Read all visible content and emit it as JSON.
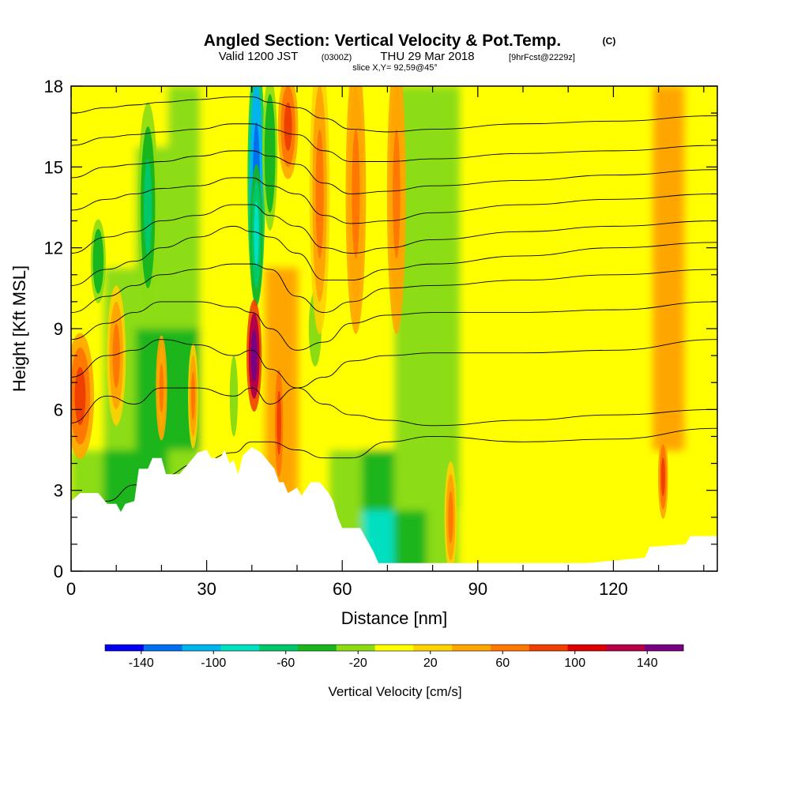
{
  "title": {
    "main": "Angled Section: Vertical Velocity & Pot.Temp.",
    "copyright": "(C)",
    "valid_prefix": "Valid 1200 JST",
    "valid_z": "(0300Z)",
    "valid_date": "THU 29 Mar 2018",
    "forecast": "[9hrFcst@2229z]",
    "slice": "slice X,Y= 92,59@45°"
  },
  "chart_data": {
    "type": "heatmap",
    "xlabel": "Distance [nm]",
    "ylabel": "Height [Kft MSL]",
    "xlim": [
      0,
      143
    ],
    "ylim": [
      0,
      18
    ],
    "x_ticks": [
      0,
      30,
      60,
      90,
      120
    ],
    "y_ticks": [
      0,
      3,
      6,
      9,
      12,
      15,
      18
    ],
    "x_tick_labels": [
      "0",
      "30",
      "60",
      "90",
      "120"
    ],
    "y_tick_labels": [
      "0",
      "3",
      "6",
      "9",
      "12",
      "15",
      "18"
    ],
    "grid": false,
    "colorbar": {
      "title": "Vertical Velocity [cm/s]",
      "ticks": [
        -140,
        -100,
        -60,
        -20,
        20,
        60,
        100,
        140
      ],
      "tick_labels": [
        "-140",
        "-100",
        "-60",
        "-20",
        "20",
        "60",
        "100",
        "140"
      ],
      "range": [
        -160,
        160
      ],
      "step": 20,
      "colors": [
        "#0000ee",
        "#0070ee",
        "#00b4ee",
        "#00e0c0",
        "#00c86a",
        "#1ab61e",
        "#8cdc14",
        "#ffff00",
        "#ffd200",
        "#ffa500",
        "#ff7800",
        "#f04000",
        "#dc0000",
        "#b40046",
        "#780082"
      ]
    },
    "terrain_kft": [
      [
        0,
        2.6
      ],
      [
        2,
        2.9
      ],
      [
        6,
        2.9
      ],
      [
        8,
        2.5
      ],
      [
        10,
        2.5
      ],
      [
        11,
        2.2
      ],
      [
        12,
        2.5
      ],
      [
        14,
        2.6
      ],
      [
        15,
        3.8
      ],
      [
        17,
        3.8
      ],
      [
        18,
        4.2
      ],
      [
        20,
        4.2
      ],
      [
        21,
        3.6
      ],
      [
        24,
        3.6
      ],
      [
        25,
        3.8
      ],
      [
        27,
        4.2
      ],
      [
        28,
        4.4
      ],
      [
        30,
        4.5
      ],
      [
        31,
        4.2
      ],
      [
        33,
        4.2
      ],
      [
        34,
        4.5
      ],
      [
        35,
        4.0
      ],
      [
        36,
        4.1
      ],
      [
        37,
        3.6
      ],
      [
        38,
        4.3
      ],
      [
        40,
        4.6
      ],
      [
        42,
        4.4
      ],
      [
        44,
        4.0
      ],
      [
        45,
        3.8
      ],
      [
        46,
        3.3
      ],
      [
        47,
        3.3
      ],
      [
        48,
        2.9
      ],
      [
        50,
        3.1
      ],
      [
        51,
        2.8
      ],
      [
        53,
        3.3
      ],
      [
        55,
        3.3
      ],
      [
        57,
        2.9
      ],
      [
        58,
        2.6
      ],
      [
        59,
        2.0
      ],
      [
        60,
        1.6
      ],
      [
        64,
        1.6
      ],
      [
        66,
        1.0
      ],
      [
        67,
        0.7
      ],
      [
        68,
        0.3
      ],
      [
        72,
        0.3
      ],
      [
        90,
        0.3
      ],
      [
        102,
        0.3
      ],
      [
        114,
        0.3
      ],
      [
        127,
        0.5
      ],
      [
        128,
        0.9
      ],
      [
        136,
        1.0
      ],
      [
        137,
        1.3
      ],
      [
        143,
        1.3
      ]
    ],
    "background_field_cms": [
      [
        -10,
        -10,
        -10,
        -30,
        -10,
        10,
        10,
        10,
        10,
        -10,
        -30,
        -30,
        0,
        0,
        0,
        10,
        -10,
        -10,
        30,
        -10
      ],
      [
        -10,
        -10,
        -30,
        -30,
        -10,
        10,
        10,
        10,
        10,
        -10,
        -30,
        -30,
        0,
        0,
        0,
        10,
        -10,
        10,
        30,
        -10
      ],
      [
        -10,
        -10,
        -30,
        -30,
        -10,
        10,
        10,
        10,
        10,
        -10,
        -30,
        -30,
        10,
        0,
        0,
        10,
        -10,
        10,
        30,
        -10
      ],
      [
        -10,
        -30,
        -30,
        -30,
        -10,
        10,
        30,
        10,
        -10,
        -10,
        -30,
        -30,
        10,
        0,
        0,
        10,
        10,
        10,
        30,
        -10
      ],
      [
        -10,
        -30,
        -50,
        -50,
        -10,
        10,
        30,
        10,
        -10,
        -10,
        -30,
        -30,
        10,
        0,
        10,
        10,
        10,
        10,
        30,
        -10
      ],
      [
        -10,
        -30,
        -50,
        -50,
        -10,
        10,
        30,
        10,
        -10,
        -10,
        -30,
        -30,
        10,
        10,
        10,
        10,
        10,
        10,
        30,
        -10
      ],
      [
        -30,
        -50,
        -50,
        -30,
        -10,
        10,
        30,
        10,
        -30,
        -50,
        -30,
        -30,
        10,
        10,
        10,
        10,
        10,
        10,
        10,
        -10
      ],
      [
        -30,
        -50,
        -50,
        -30,
        -10,
        10,
        50,
        30,
        -30,
        -90,
        -50,
        -30,
        -10,
        10,
        10,
        10,
        10,
        10,
        10,
        -10
      ]
    ],
    "features": [
      {
        "x": 41,
        "y": 14.5,
        "w": 1.4,
        "h": 3.6,
        "value": -140
      },
      {
        "x": 41,
        "y": 12.5,
        "w": 1.0,
        "h": 2.0,
        "value": -100
      },
      {
        "x": 40.5,
        "y": 8.0,
        "w": 1.2,
        "h": 1.6,
        "value": 140
      },
      {
        "x": 44,
        "y": 15.5,
        "w": 1.2,
        "h": 2.2,
        "value": -60
      },
      {
        "x": 48,
        "y": 16.5,
        "w": 1.6,
        "h": 1.5,
        "value": 70
      },
      {
        "x": 17,
        "y": 13.5,
        "w": 1.6,
        "h": 3.0,
        "value": -70
      },
      {
        "x": 6,
        "y": 11.5,
        "w": 1.2,
        "h": 1.2,
        "value": -60
      },
      {
        "x": 2,
        "y": 6.5,
        "w": 2.2,
        "h": 1.8,
        "value": 60
      },
      {
        "x": 20,
        "y": 6.8,
        "w": 0.9,
        "h": 1.5,
        "value": 50
      },
      {
        "x": 27,
        "y": 6.5,
        "w": 0.8,
        "h": 1.5,
        "value": 40
      },
      {
        "x": 36,
        "y": 6.5,
        "w": 0.9,
        "h": 1.5,
        "value": -40
      },
      {
        "x": 46,
        "y": 5.5,
        "w": 0.9,
        "h": 2.0,
        "value": 70
      },
      {
        "x": 54,
        "y": 9.0,
        "w": 1.4,
        "h": 1.4,
        "value": -40
      },
      {
        "x": 63,
        "y": 14.0,
        "w": 1.6,
        "h": 4.0,
        "value": 50
      },
      {
        "x": 72,
        "y": 14.0,
        "w": 1.5,
        "h": 4.0,
        "value": 50
      },
      {
        "x": 55,
        "y": 14.0,
        "w": 1.6,
        "h": 4.0,
        "value": 40
      },
      {
        "x": 84,
        "y": 2.0,
        "w": 1.0,
        "h": 1.6,
        "value": 40
      },
      {
        "x": 131,
        "y": 3.5,
        "w": 0.8,
        "h": 1.2,
        "value": 60
      },
      {
        "x": 10,
        "y": 8.0,
        "w": 1.5,
        "h": 2.0,
        "value": 40
      }
    ],
    "isentropes_kft_at_x": {
      "x": [
        0,
        8,
        14,
        20,
        28,
        36,
        40,
        44,
        50,
        56,
        62,
        70,
        80,
        100,
        120,
        143
      ],
      "levels": [
        [
          1.8,
          2.6,
          3.2,
          3.5,
          4.0,
          4.4,
          4.8,
          4.8,
          4.5,
          4.2,
          4.2,
          4.8,
          5.0,
          4.8,
          4.9,
          5.3
        ],
        [
          5.5,
          6.5,
          6.2,
          6.8,
          6.8,
          6.5,
          6.8,
          6.2,
          6.8,
          6.2,
          5.8,
          5.6,
          5.4,
          5.6,
          5.8,
          6.0
        ],
        [
          7.2,
          8.0,
          8.2,
          8.6,
          8.4,
          8.0,
          8.2,
          7.5,
          6.8,
          7.2,
          7.8,
          8.0,
          8.1,
          8.1,
          8.2,
          8.6
        ],
        [
          8.6,
          9.2,
          9.6,
          10.0,
          10.0,
          9.8,
          9.6,
          9.0,
          8.2,
          8.5,
          9.2,
          9.5,
          9.6,
          9.6,
          9.7,
          10.0
        ],
        [
          9.6,
          10.2,
          10.6,
          11.0,
          11.2,
          11.4,
          11.4,
          11.2,
          10.2,
          9.6,
          10.0,
          10.5,
          10.6,
          10.8,
          11.0,
          11.2
        ],
        [
          10.6,
          11.2,
          11.5,
          12.0,
          12.4,
          12.8,
          12.6,
          12.4,
          11.8,
          10.8,
          10.8,
          11.2,
          11.4,
          11.7,
          12.0,
          12.2
        ],
        [
          11.8,
          12.4,
          12.6,
          13.0,
          13.2,
          13.6,
          13.6,
          13.2,
          12.8,
          12.0,
          11.8,
          12.0,
          12.3,
          12.6,
          12.8,
          13.0
        ],
        [
          13.4,
          13.8,
          14.0,
          14.2,
          14.3,
          14.6,
          14.6,
          14.3,
          14.0,
          13.2,
          12.9,
          13.0,
          13.3,
          13.6,
          13.8,
          14.0
        ],
        [
          14.6,
          15.0,
          15.1,
          15.2,
          15.4,
          15.6,
          15.6,
          15.4,
          15.1,
          14.4,
          14.0,
          14.1,
          14.3,
          14.5,
          14.7,
          14.9
        ],
        [
          15.8,
          16.1,
          16.2,
          16.3,
          16.4,
          16.6,
          16.6,
          16.4,
          16.2,
          15.6,
          15.2,
          15.2,
          15.3,
          15.5,
          15.6,
          15.8
        ],
        [
          17.0,
          17.2,
          17.3,
          17.4,
          17.5,
          17.6,
          17.6,
          17.4,
          17.2,
          16.8,
          16.4,
          16.3,
          16.4,
          16.6,
          16.7,
          16.9
        ]
      ]
    }
  }
}
